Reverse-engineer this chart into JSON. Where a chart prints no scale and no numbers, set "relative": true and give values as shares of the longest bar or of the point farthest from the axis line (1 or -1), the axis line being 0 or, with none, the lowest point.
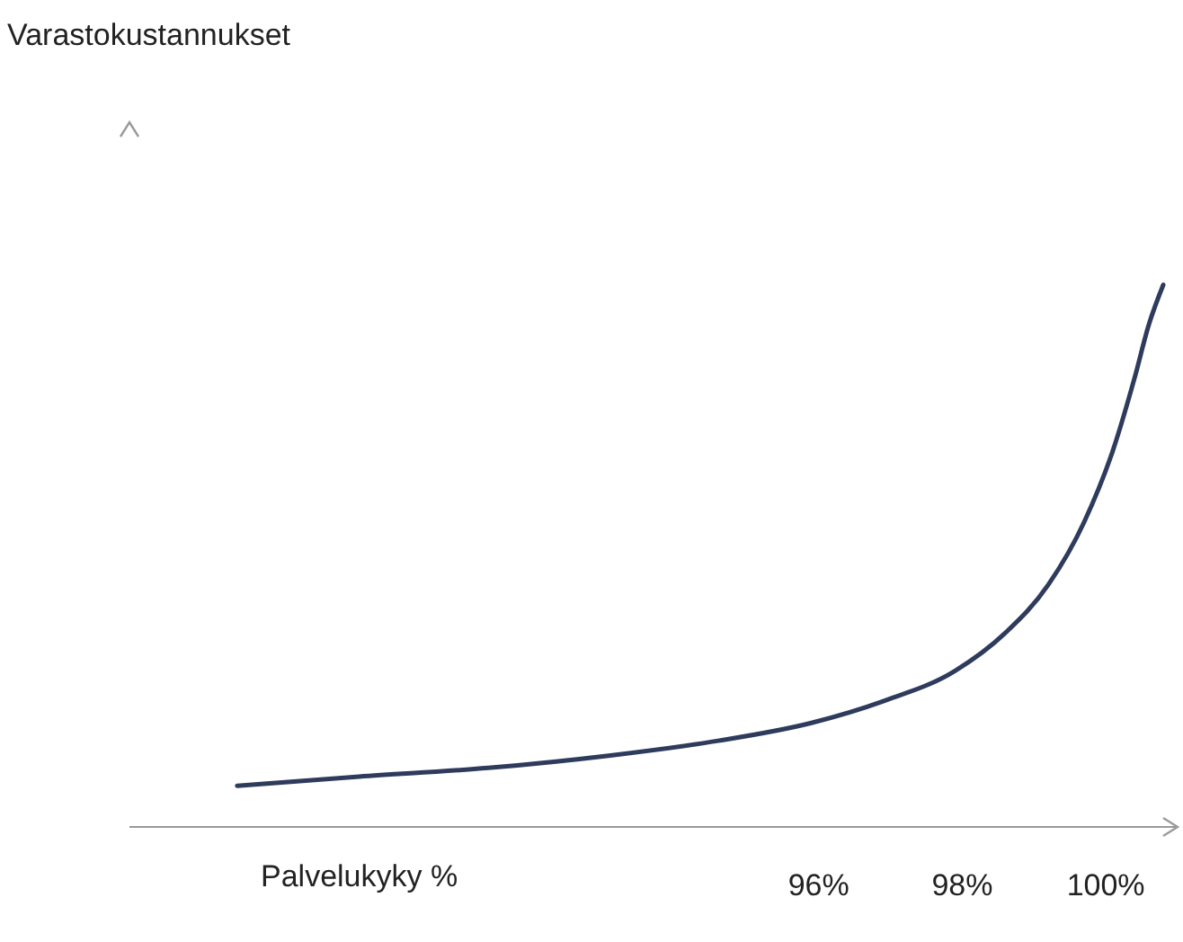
{
  "chart_data": {
    "type": "line",
    "relative": true,
    "xlabel": "Palvelukyky %",
    "annotations": [
      "Varastokustannukset"
    ],
    "x": [
      87.9,
      89.6,
      91.4,
      93.1,
      94.6,
      95.9,
      96.9,
      97.9,
      98.6,
      99.2,
      99.7,
      100.1,
      100.4,
      100.6,
      100.8
    ],
    "xlim": [
      86.4,
      101
    ],
    "xticks": [
      {
        "value": 96,
        "label": "96%"
      },
      {
        "value": 98,
        "label": "98%"
      },
      {
        "value": 100,
        "label": "100%"
      }
    ],
    "series": [
      {
        "color": "#2e3b5c",
        "values": [
          0.076,
          0.093,
          0.109,
          0.132,
          0.159,
          0.192,
          0.232,
          0.288,
          0.358,
          0.447,
          0.563,
          0.695,
          0.828,
          0.927,
          1
        ]
      }
    ]
  }
}
